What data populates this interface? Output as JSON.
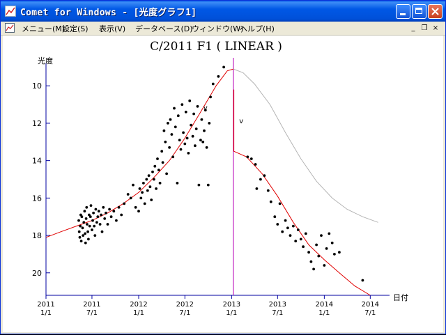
{
  "window": {
    "title": "Comet for Windows - [光度グラフ1]"
  },
  "menu": {
    "items": [
      "メニュー(M)",
      "設定(S)",
      "表示(V)",
      "データベース(D)",
      "ウィンドウ(W)",
      "ヘルプ(H)"
    ],
    "mdi_minimize": "_",
    "mdi_restore": "❐",
    "mdi_close": "×"
  },
  "chart_data": {
    "type": "scatter",
    "title": "C/2011 F1 ( LINEAR )",
    "ylabel": "光度",
    "xlabel": "日付",
    "y_inverted": true,
    "ylim": [
      21.2,
      8.8
    ],
    "xlim": [
      "2011-01-01",
      "2014-09-15"
    ],
    "yticks": [
      10,
      12,
      14,
      16,
      18,
      20
    ],
    "xticks": [
      {
        "year": "2011",
        "md": "1/1",
        "date": "2011-01-01"
      },
      {
        "year": "2011",
        "md": "7/1",
        "date": "2011-07-01"
      },
      {
        "year": "2012",
        "md": "1/1",
        "date": "2012-01-01"
      },
      {
        "year": "2012",
        "md": "7/1",
        "date": "2012-07-01"
      },
      {
        "year": "2013",
        "md": "1/1",
        "date": "2013-01-01"
      },
      {
        "year": "2013",
        "md": "7/1",
        "date": "2013-07-01"
      },
      {
        "year": "2014",
        "md": "1/1",
        "date": "2014-01-01"
      },
      {
        "year": "2014",
        "md": "7/1",
        "date": "2014-07-01"
      }
    ],
    "perihelion_date": "2013-01-08",
    "annotations": [
      {
        "text": "v",
        "date": "2012-09-01",
        "mag": 11.3
      },
      {
        "text": "v",
        "date": "2013-01-20",
        "mag": 12.0
      }
    ],
    "colors": {
      "fit": "#e00000",
      "prediction": "#b4b4b4",
      "marker": "#c020c0",
      "axis": "#0000a0",
      "points": "#000000"
    },
    "series": [
      {
        "role": "fit",
        "points": [
          [
            "2011-01-01",
            18.1
          ],
          [
            "2011-03-01",
            17.8
          ],
          [
            "2011-05-01",
            17.5
          ],
          [
            "2011-07-01",
            17.2
          ],
          [
            "2011-09-01",
            16.8
          ],
          [
            "2011-11-01",
            16.3
          ],
          [
            "2012-01-01",
            15.7
          ],
          [
            "2012-03-01",
            14.9
          ],
          [
            "2012-05-01",
            14.0
          ],
          [
            "2012-07-01",
            12.8
          ],
          [
            "2012-09-01",
            11.4
          ],
          [
            "2012-11-01",
            10.0
          ],
          [
            "2012-12-15",
            9.2
          ],
          [
            "2013-01-08",
            9.1
          ]
        ]
      },
      {
        "role": "prediction",
        "points": [
          [
            "2013-01-08",
            9.1
          ],
          [
            "2013-02-15",
            9.3
          ],
          [
            "2013-04-01",
            9.9
          ],
          [
            "2013-06-01",
            11.0
          ],
          [
            "2013-08-01",
            12.5
          ],
          [
            "2013-10-01",
            13.9
          ],
          [
            "2013-12-01",
            15.1
          ],
          [
            "2014-02-01",
            16.0
          ],
          [
            "2014-04-01",
            16.6
          ],
          [
            "2014-06-01",
            17.0
          ],
          [
            "2014-08-01",
            17.3
          ]
        ]
      },
      {
        "role": "fit-outbound",
        "points": [
          [
            "2013-01-10",
            10.2
          ],
          [
            "2013-01-10",
            13.5
          ],
          [
            "2013-03-01",
            13.8
          ],
          [
            "2013-05-01",
            14.7
          ],
          [
            "2013-07-01",
            15.9
          ],
          [
            "2013-09-01",
            17.3
          ],
          [
            "2013-11-01",
            18.5
          ],
          [
            "2014-01-01",
            19.3
          ],
          [
            "2014-03-01",
            20.0
          ],
          [
            "2014-05-01",
            20.7
          ],
          [
            "2014-07-01",
            21.2
          ]
        ]
      },
      {
        "role": "observations",
        "points": [
          [
            "2011-05-10",
            17.2
          ],
          [
            "2011-05-12",
            17.8
          ],
          [
            "2011-05-14",
            18.1
          ],
          [
            "2011-05-16",
            17.5
          ],
          [
            "2011-05-18",
            16.9
          ],
          [
            "2011-05-20",
            18.3
          ],
          [
            "2011-05-22",
            17.0
          ],
          [
            "2011-05-25",
            17.6
          ],
          [
            "2011-05-27",
            18.0
          ],
          [
            "2011-05-30",
            17.3
          ],
          [
            "2011-06-02",
            16.7
          ],
          [
            "2011-06-04",
            17.9
          ],
          [
            "2011-06-06",
            18.4
          ],
          [
            "2011-06-08",
            17.1
          ],
          [
            "2011-06-10",
            16.5
          ],
          [
            "2011-06-12",
            17.4
          ],
          [
            "2011-06-15",
            17.8
          ],
          [
            "2011-06-17",
            18.2
          ],
          [
            "2011-06-20",
            16.9
          ],
          [
            "2011-06-22",
            17.5
          ],
          [
            "2011-06-25",
            17.0
          ],
          [
            "2011-06-27",
            16.4
          ],
          [
            "2011-07-01",
            17.7
          ],
          [
            "2011-07-04",
            17.2
          ],
          [
            "2011-07-07",
            16.8
          ],
          [
            "2011-07-10",
            17.5
          ],
          [
            "2011-07-13",
            18.0
          ],
          [
            "2011-07-16",
            16.6
          ],
          [
            "2011-07-20",
            17.3
          ],
          [
            "2011-07-24",
            17.0
          ],
          [
            "2011-07-28",
            16.7
          ],
          [
            "2011-08-02",
            17.4
          ],
          [
            "2011-08-06",
            16.9
          ],
          [
            "2011-08-10",
            17.8
          ],
          [
            "2011-08-15",
            16.5
          ],
          [
            "2011-08-20",
            17.1
          ],
          [
            "2011-08-25",
            16.8
          ],
          [
            "2011-09-01",
            17.4
          ],
          [
            "2011-09-08",
            16.6
          ],
          [
            "2011-09-15",
            17.0
          ],
          [
            "2011-09-25",
            16.7
          ],
          [
            "2011-10-05",
            17.2
          ],
          [
            "2011-10-15",
            16.5
          ],
          [
            "2011-10-25",
            16.9
          ],
          [
            "2011-11-05",
            16.3
          ],
          [
            "2011-11-20",
            15.8
          ],
          [
            "2011-12-01",
            16.0
          ],
          [
            "2011-12-10",
            15.3
          ],
          [
            "2011-12-20",
            16.5
          ],
          [
            "2012-01-01",
            16.7
          ],
          [
            "2012-01-05",
            15.5
          ],
          [
            "2012-01-10",
            16.0
          ],
          [
            "2012-01-15",
            15.7
          ],
          [
            "2012-01-20",
            15.2
          ],
          [
            "2012-01-25",
            16.3
          ],
          [
            "2012-02-01",
            15.0
          ],
          [
            "2012-02-05",
            15.6
          ],
          [
            "2012-02-10",
            14.8
          ],
          [
            "2012-02-15",
            15.4
          ],
          [
            "2012-02-20",
            16.1
          ],
          [
            "2012-02-25",
            14.6
          ],
          [
            "2012-03-01",
            15.0
          ],
          [
            "2012-03-05",
            14.3
          ],
          [
            "2012-03-10",
            15.5
          ],
          [
            "2012-03-15",
            13.9
          ],
          [
            "2012-03-20",
            14.5
          ],
          [
            "2012-03-25",
            15.2
          ],
          [
            "2012-04-01",
            13.5
          ],
          [
            "2012-04-05",
            14.1
          ],
          [
            "2012-04-10",
            12.4
          ],
          [
            "2012-04-15",
            13.0
          ],
          [
            "2012-04-20",
            14.7
          ],
          [
            "2012-04-25",
            12.0
          ],
          [
            "2012-05-01",
            13.3
          ],
          [
            "2012-05-05",
            11.8
          ],
          [
            "2012-05-10",
            12.6
          ],
          [
            "2012-05-15",
            13.8
          ],
          [
            "2012-05-20",
            11.2
          ],
          [
            "2012-05-25",
            12.2
          ],
          [
            "2012-06-01",
            15.2
          ],
          [
            "2012-06-05",
            11.6
          ],
          [
            "2012-06-10",
            12.9
          ],
          [
            "2012-06-15",
            13.4
          ],
          [
            "2012-06-20",
            11.0
          ],
          [
            "2012-06-25",
            12.5
          ],
          [
            "2012-07-01",
            13.1
          ],
          [
            "2012-07-05",
            11.4
          ],
          [
            "2012-07-10",
            12.8
          ],
          [
            "2012-07-15",
            13.6
          ],
          [
            "2012-07-20",
            10.8
          ],
          [
            "2012-07-25",
            12.1
          ],
          [
            "2012-08-01",
            12.7
          ],
          [
            "2012-08-05",
            11.5
          ],
          [
            "2012-08-10",
            13.2
          ],
          [
            "2012-08-15",
            12.3
          ],
          [
            "2012-08-20",
            11.1
          ],
          [
            "2012-08-25",
            15.3
          ],
          [
            "2012-09-01",
            12.9
          ],
          [
            "2012-09-05",
            11.8
          ],
          [
            "2012-09-10",
            13.0
          ],
          [
            "2012-09-15",
            12.4
          ],
          [
            "2012-09-20",
            11.3
          ],
          [
            "2012-09-25",
            13.3
          ],
          [
            "2012-10-01",
            15.3
          ],
          [
            "2012-10-05",
            12.0
          ],
          [
            "2012-10-10",
            10.6
          ],
          [
            "2012-10-20",
            9.9
          ],
          [
            "2012-11-10",
            9.5
          ],
          [
            "2012-12-01",
            9.0
          ],
          [
            "2013-03-05",
            13.8
          ],
          [
            "2013-03-20",
            13.9
          ],
          [
            "2013-04-05",
            14.2
          ],
          [
            "2013-04-10",
            15.5
          ],
          [
            "2013-04-25",
            15.0
          ],
          [
            "2013-05-10",
            14.8
          ],
          [
            "2013-05-25",
            15.6
          ],
          [
            "2013-06-05",
            16.2
          ],
          [
            "2013-06-20",
            17.0
          ],
          [
            "2013-07-01",
            17.4
          ],
          [
            "2013-07-10",
            16.3
          ],
          [
            "2013-07-20",
            17.8
          ],
          [
            "2013-08-01",
            17.2
          ],
          [
            "2013-08-10",
            17.6
          ],
          [
            "2013-08-20",
            18.0
          ],
          [
            "2013-09-01",
            17.5
          ],
          [
            "2013-09-10",
            18.3
          ],
          [
            "2013-09-20",
            17.7
          ],
          [
            "2013-10-01",
            18.2
          ],
          [
            "2013-10-10",
            18.6
          ],
          [
            "2013-10-20",
            17.9
          ],
          [
            "2013-11-01",
            18.9
          ],
          [
            "2013-11-10",
            19.4
          ],
          [
            "2013-11-20",
            19.8
          ],
          [
            "2013-12-01",
            18.5
          ],
          [
            "2013-12-10",
            19.1
          ],
          [
            "2013-12-20",
            18.0
          ],
          [
            "2014-01-01",
            19.6
          ],
          [
            "2014-01-10",
            18.7
          ],
          [
            "2014-01-20",
            17.9
          ],
          [
            "2014-02-01",
            18.4
          ],
          [
            "2014-02-10",
            19.0
          ],
          [
            "2014-03-01",
            18.9
          ],
          [
            "2014-06-01",
            20.4
          ]
        ]
      }
    ]
  }
}
